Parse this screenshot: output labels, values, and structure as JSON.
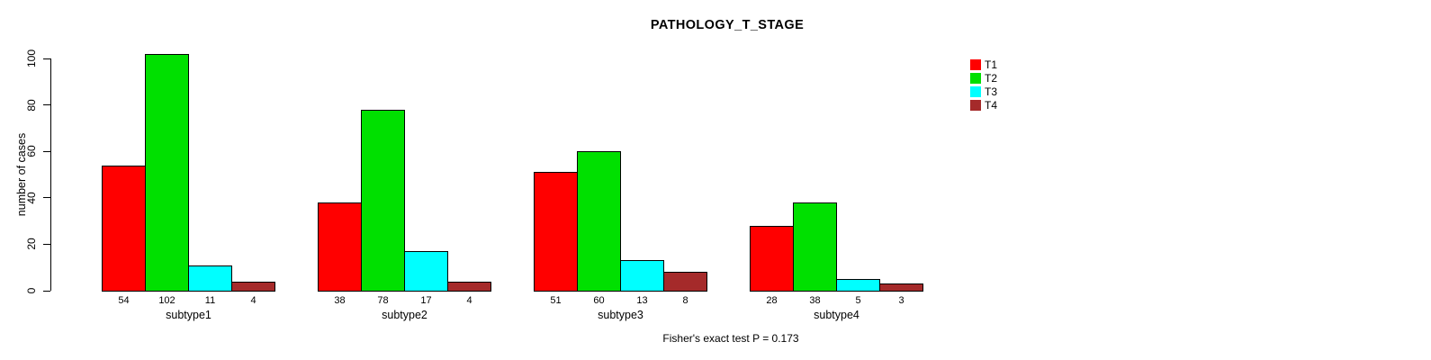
{
  "chart_data": {
    "type": "bar",
    "title": "PATHOLOGY_T_STAGE",
    "xlabel": "",
    "ylabel": "number of cases",
    "ylim": [
      0,
      100
    ],
    "yticks": [
      0,
      20,
      40,
      60,
      80,
      100
    ],
    "grid": false,
    "legend_position": "right",
    "bar_value_labels_shown": true,
    "categories": [
      "subtype1",
      "subtype2",
      "subtype3",
      "subtype4"
    ],
    "series": [
      {
        "name": "T1",
        "color": "#FF0000",
        "values": [
          54,
          38,
          51,
          28
        ]
      },
      {
        "name": "T2",
        "color": "#00E000",
        "values": [
          102,
          78,
          60,
          38
        ]
      },
      {
        "name": "T3",
        "color": "#00FFFF",
        "values": [
          11,
          17,
          13,
          5
        ]
      },
      {
        "name": "T4",
        "color": "#A52A2A",
        "values": [
          4,
          4,
          8,
          3
        ]
      }
    ],
    "annotation": "Fisher's exact test P = 0.173",
    "colors": {
      "background": "#FFFFFF",
      "axis": "#000000",
      "text": "#000000"
    }
  }
}
